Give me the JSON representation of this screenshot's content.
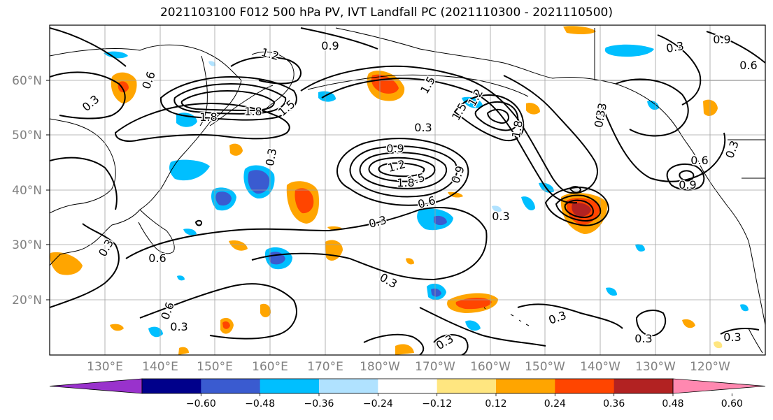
{
  "title": "2021103100 F012 500 hPa PV, IVT Landfall PC (2021110300 - 2021110500)",
  "lat_labels": [
    "60°N",
    "50°N",
    "40°N",
    "30°N",
    "20°N"
  ],
  "lon_labels": [
    "130°E",
    "140°E",
    "150°E",
    "160°E",
    "170°E",
    "180°W",
    "170°W",
    "160°W",
    "150°W",
    "140°W",
    "130°W",
    "120°W"
  ],
  "colorbar": {
    "colors": [
      "#9932cc",
      "#00008b",
      "#3a5bd0",
      "#00bfff",
      "#b0e2ff",
      "#ffffff",
      "#ffe680",
      "#ffa500",
      "#ff4500",
      "#b22222",
      "#ff88b0"
    ],
    "tick_labels": [
      "−0.60",
      "−0.48",
      "−0.36",
      "−0.24",
      "−0.12",
      "0.12",
      "0.24",
      "0.36",
      "0.48",
      "0.60"
    ]
  },
  "contour_labels": [
    "0.9",
    "1.2",
    "1.5",
    "0.3",
    "0.6",
    "1.8",
    "1.8",
    "1.5",
    "0.3",
    "0.6",
    "0.9",
    "1.2",
    "1.5",
    "1.8",
    "0.9",
    "1.2",
    "1.5",
    "1.8",
    "0.3",
    "0.6",
    "0.3",
    "0.3",
    "0.6",
    "0.3",
    "0.3",
    "0.3",
    "0.3",
    "0.3",
    "0.3",
    "0.3",
    "0.3",
    "0.6",
    "0.9",
    "0.3",
    "0.6",
    "0.9",
    "0.3",
    "0.3"
  ],
  "colors": {
    "contour": "#000000",
    "grid": "#a0a0a0",
    "coast": "#000000"
  }
}
